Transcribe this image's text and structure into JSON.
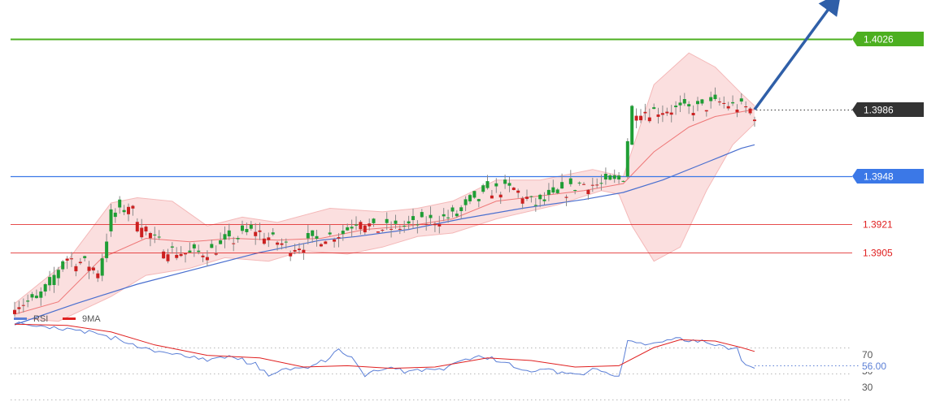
{
  "chart_data": [
    {
      "type": "candlestick",
      "ylim": [
        1.3818,
        1.4048
      ],
      "x_count": 150,
      "levels": [
        {
          "value": 1.4026,
          "label": "1.4026",
          "color": "#4caf20",
          "style": "solid",
          "tag": "filled"
        },
        {
          "value": 1.3986,
          "label": "1.3986",
          "color": "#333333",
          "style": "dotted",
          "tag": "filled"
        },
        {
          "value": 1.3948,
          "label": "1.3948",
          "color": "#3b78e7",
          "style": "solid",
          "tag": "filled"
        },
        {
          "value": 1.3921,
          "label": "1.3921",
          "color": "#e02020",
          "style": "solid",
          "tag": "text"
        },
        {
          "value": 1.3905,
          "label": "1.3905",
          "color": "#e02020",
          "style": "solid",
          "tag": "text"
        }
      ],
      "close_path": [
        [
          0,
          1.3876
        ],
        [
          5,
          1.3878
        ],
        [
          8,
          1.3886
        ],
        [
          11,
          1.3902
        ],
        [
          16,
          1.3898
        ],
        [
          19,
          1.3893
        ],
        [
          22,
          1.3925
        ],
        [
          25,
          1.3932
        ],
        [
          28,
          1.3922
        ],
        [
          31,
          1.3912
        ],
        [
          35,
          1.3906
        ],
        [
          39,
          1.3904
        ],
        [
          44,
          1.3906
        ],
        [
          49,
          1.3912
        ],
        [
          54,
          1.3918
        ],
        [
          58,
          1.3912
        ],
        [
          62,
          1.3908
        ],
        [
          66,
          1.391
        ],
        [
          70,
          1.3914
        ],
        [
          74,
          1.3916
        ],
        [
          78,
          1.3925
        ],
        [
          81,
          1.3918
        ],
        [
          86,
          1.3919
        ],
        [
          91,
          1.3921
        ],
        [
          96,
          1.3924
        ],
        [
          100,
          1.3926
        ],
        [
          104,
          1.3933
        ],
        [
          108,
          1.394
        ],
        [
          113,
          1.3941
        ],
        [
          118,
          1.3932
        ],
        [
          124,
          1.3938
        ],
        [
          128,
          1.3944
        ],
        [
          134,
          1.3943
        ],
        [
          137,
          1.3946
        ],
        [
          139,
          1.395
        ],
        [
          140,
          1.3968
        ],
        [
          141,
          1.3986
        ],
        [
          144,
          1.3985
        ],
        [
          148,
          1.3986
        ],
        [
          152,
          1.3986
        ],
        [
          156,
          1.3987
        ],
        [
          160,
          1.399
        ],
        [
          163,
          1.3988
        ],
        [
          166,
          1.3987
        ],
        [
          167,
          1.3986
        ],
        [
          168,
          1.3983
        ],
        [
          169,
          1.3984
        ]
      ],
      "bollinger": {
        "upper": [
          [
            0,
            1.3876
          ],
          [
            12,
            1.39
          ],
          [
            22,
            1.3933
          ],
          [
            28,
            1.3936
          ],
          [
            36,
            1.3934
          ],
          [
            44,
            1.392
          ],
          [
            52,
            1.3925
          ],
          [
            60,
            1.3922
          ],
          [
            72,
            1.393
          ],
          [
            84,
            1.3928
          ],
          [
            92,
            1.393
          ],
          [
            100,
            1.3934
          ],
          [
            110,
            1.3946
          ],
          [
            120,
            1.3946
          ],
          [
            132,
            1.3952
          ],
          [
            139,
            1.3948
          ],
          [
            146,
            1.4
          ],
          [
            154,
            1.4018
          ],
          [
            160,
            1.401
          ],
          [
            166,
            1.3995
          ],
          [
            169,
            1.3988
          ]
        ],
        "lower": [
          [
            0,
            1.3868
          ],
          [
            10,
            1.3866
          ],
          [
            22,
            1.388
          ],
          [
            30,
            1.3892
          ],
          [
            40,
            1.3896
          ],
          [
            48,
            1.3902
          ],
          [
            58,
            1.39
          ],
          [
            66,
            1.3906
          ],
          [
            76,
            1.3904
          ],
          [
            84,
            1.3908
          ],
          [
            92,
            1.3914
          ],
          [
            100,
            1.3916
          ],
          [
            110,
            1.3924
          ],
          [
            124,
            1.3932
          ],
          [
            134,
            1.394
          ],
          [
            138,
            1.3938
          ],
          [
            141,
            1.392
          ],
          [
            146,
            1.39
          ],
          [
            152,
            1.3908
          ],
          [
            158,
            1.394
          ],
          [
            164,
            1.3966
          ],
          [
            169,
            1.3978
          ]
        ]
      },
      "sma_fast": [
        [
          0,
          1.387
        ],
        [
          10,
          1.3877
        ],
        [
          20,
          1.3902
        ],
        [
          30,
          1.3913
        ],
        [
          40,
          1.3911
        ],
        [
          50,
          1.3913
        ],
        [
          60,
          1.3912
        ],
        [
          70,
          1.3913
        ],
        [
          80,
          1.3918
        ],
        [
          90,
          1.392
        ],
        [
          100,
          1.3924
        ],
        [
          110,
          1.3934
        ],
        [
          120,
          1.3937
        ],
        [
          130,
          1.394
        ],
        [
          139,
          1.3944
        ],
        [
          146,
          1.3962
        ],
        [
          154,
          1.3976
        ],
        [
          160,
          1.3982
        ],
        [
          169,
          1.3986
        ]
      ],
      "sma_slow": [
        [
          0,
          1.3864
        ],
        [
          14,
          1.3876
        ],
        [
          28,
          1.3887
        ],
        [
          42,
          1.3896
        ],
        [
          56,
          1.3905
        ],
        [
          70,
          1.3912
        ],
        [
          78,
          1.3914
        ],
        [
          90,
          1.3918
        ],
        [
          102,
          1.3924
        ],
        [
          116,
          1.393
        ],
        [
          130,
          1.3935
        ],
        [
          139,
          1.3939
        ],
        [
          148,
          1.3946
        ],
        [
          158,
          1.3956
        ],
        [
          166,
          1.3964
        ],
        [
          169,
          1.3966
        ]
      ],
      "forecast_arrow": {
        "from": [
          169,
          1.3986
        ],
        "to": [
          188,
          1.405
        ],
        "color": "#2f5fa8"
      }
    },
    {
      "type": "line",
      "series": [
        {
          "name": "RSI",
          "color": "#5b7fd6",
          "values": [
            [
              0,
              88
            ],
            [
              10,
              86
            ],
            [
              18,
              82
            ],
            [
              26,
              74
            ],
            [
              34,
              66
            ],
            [
              42,
              61
            ],
            [
              50,
              62
            ],
            [
              56,
              55
            ],
            [
              58,
              50
            ],
            [
              62,
              52
            ],
            [
              68,
              56
            ],
            [
              72,
              62
            ],
            [
              74,
              68
            ],
            [
              78,
              58
            ],
            [
              80,
              50
            ],
            [
              86,
              54
            ],
            [
              92,
              51
            ],
            [
              98,
              54
            ],
            [
              104,
              63
            ],
            [
              110,
              60
            ],
            [
              116,
              52
            ],
            [
              122,
              54
            ],
            [
              128,
              48
            ],
            [
              132,
              54
            ],
            [
              136,
              50
            ],
            [
              138,
              48
            ],
            [
              140,
              76
            ],
            [
              144,
              72
            ],
            [
              150,
              76
            ],
            [
              156,
              74
            ],
            [
              160,
              72
            ],
            [
              165,
              70
            ],
            [
              167,
              55
            ],
            [
              169,
              56
            ]
          ]
        },
        {
          "name": "9MA",
          "color": "#e02020",
          "values": [
            [
              0,
              88
            ],
            [
              12,
              87
            ],
            [
              22,
              82
            ],
            [
              32,
              72
            ],
            [
              44,
              64
            ],
            [
              56,
              62
            ],
            [
              66,
              55
            ],
            [
              76,
              56
            ],
            [
              86,
              54
            ],
            [
              96,
              55
            ],
            [
              108,
              62
            ],
            [
              118,
              60
            ],
            [
              128,
              55
            ],
            [
              138,
              56
            ],
            [
              146,
              70
            ],
            [
              152,
              76
            ],
            [
              160,
              75
            ],
            [
              166,
              70
            ],
            [
              169,
              67
            ]
          ]
        }
      ],
      "ylim": [
        25,
        95
      ],
      "yticks": [
        "70",
        "50",
        "30"
      ],
      "current_label": "56.00",
      "legend": [
        {
          "name": "RSI",
          "color": "#5b7fd6"
        },
        {
          "name": "9MA",
          "color": "#e02020"
        }
      ]
    }
  ]
}
